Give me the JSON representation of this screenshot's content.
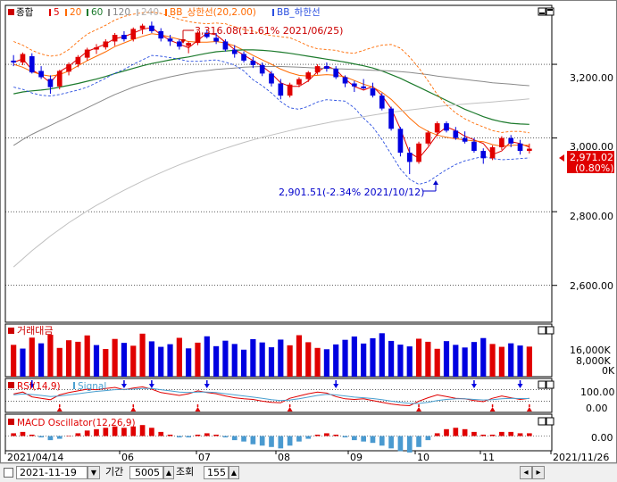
{
  "colors": {
    "up": "#e00000",
    "down": "#0000e0",
    "ma5": "#e00000",
    "ma20": "#ff6a00",
    "ma60": "#1c7a2c",
    "ma120": "#8a8a8a",
    "ma240": "#c0c0c0",
    "bb_upper": "#ff6a00",
    "bb_lower": "#2a4fe0",
    "rsi": "#e00000",
    "signal": "#4aa0d0",
    "grid": "#000000",
    "badge": "#e00000"
  },
  "legend": {
    "main_name": "종합",
    "ma5": "5",
    "ma20": "20",
    "ma60": "60",
    "ma120": "120",
    "ma240": "240",
    "bb_upper": "BB_상한선(20,2.00)",
    "bb_lower": "BB_하한선"
  },
  "annotations": {
    "high": "3,316.08(11.61% 2021/06/25)",
    "low": "2,901.51(-2.34% 2021/10/12)"
  },
  "price_badge": {
    "value": "2,971.02",
    "change": "(0.80%)"
  },
  "panels": {
    "volume_title": "거래대금",
    "rsi_title": "RSI(14,9)",
    "signal_title": "Signal",
    "macd_title": "MACD Oscillator(12,26,9)"
  },
  "bottom": {
    "date_value": "2021-11-19",
    "period_label": "기간",
    "period_value": "5005",
    "query_label": "조회",
    "count_value": "155"
  },
  "chart_data": [
    {
      "type": "candlestick",
      "title": "종합",
      "x_ticks": [
        "2021/04/14",
        "06",
        "07",
        "08",
        "09",
        "10",
        "11",
        "2021/11/26"
      ],
      "y_ticks": [
        "3,200.00",
        "3,000.00",
        "2,800.00",
        "2,600.00"
      ],
      "ylim": [
        2500,
        3360
      ],
      "series": [
        {
          "name": "5",
          "values": [
            3205,
            3215,
            3185,
            3170,
            3150,
            3180,
            3195,
            3215,
            3235,
            3245,
            3255,
            3270,
            3275,
            3285,
            3295,
            3300,
            3280,
            3265,
            3255,
            3245,
            3265,
            3285,
            3280,
            3260,
            3240,
            3225,
            3210,
            3195,
            3175,
            3150,
            3140,
            3140,
            3155,
            3180,
            3195,
            3185,
            3160,
            3140,
            3130,
            3140,
            3115,
            3080,
            3025,
            2960,
            2945,
            2975,
            3010,
            3030,
            3020,
            3005,
            2995,
            2985,
            2955,
            2965,
            2990,
            2985,
            2975
          ]
        },
        {
          "name": "20",
          "values": [
            3200,
            3192,
            3180,
            3172,
            3168,
            3172,
            3182,
            3196,
            3210,
            3222,
            3234,
            3248,
            3258,
            3268,
            3276,
            3283,
            3280,
            3274,
            3268,
            3262,
            3260,
            3260,
            3262,
            3258,
            3250,
            3238,
            3224,
            3212,
            3200,
            3187,
            3177,
            3170,
            3168,
            3170,
            3172,
            3170,
            3166,
            3156,
            3146,
            3138,
            3124,
            3105,
            3080,
            3054,
            3032,
            3018,
            3008,
            3002,
            2998,
            2995,
            2992,
            2990,
            2982,
            2978,
            2980,
            2981,
            2980
          ]
        },
        {
          "name": "60",
          "values": [
            3120,
            3125,
            3128,
            3130,
            3133,
            3138,
            3143,
            3148,
            3154,
            3160,
            3167,
            3175,
            3182,
            3189,
            3196,
            3202,
            3207,
            3212,
            3216,
            3220,
            3225,
            3230,
            3234,
            3236,
            3238,
            3239,
            3239,
            3238,
            3236,
            3233,
            3230,
            3226,
            3222,
            3218,
            3214,
            3210,
            3206,
            3201,
            3196,
            3190,
            3182,
            3172,
            3162,
            3150,
            3138,
            3126,
            3114,
            3102,
            3090,
            3078,
            3068,
            3058,
            3050,
            3044,
            3040,
            3038,
            3037
          ]
        },
        {
          "name": "120",
          "values": [
            2980,
            2996,
            3010,
            3022,
            3034,
            3046,
            3058,
            3070,
            3082,
            3094,
            3106,
            3118,
            3128,
            3138,
            3146,
            3153,
            3160,
            3166,
            3171,
            3176,
            3180,
            3183,
            3186,
            3188,
            3190,
            3192,
            3193,
            3194,
            3194,
            3194,
            3193,
            3192,
            3191,
            3190,
            3189,
            3188,
            3187,
            3186,
            3185,
            3184,
            3183,
            3182,
            3180,
            3178,
            3175,
            3172,
            3168,
            3165,
            3162,
            3159,
            3156,
            3153,
            3150,
            3148,
            3146,
            3144,
            3142
          ]
        },
        {
          "name": "240",
          "values": [
            2650,
            2672,
            2694,
            2714,
            2734,
            2752,
            2770,
            2786,
            2802,
            2817,
            2831,
            2845,
            2858,
            2871,
            2883,
            2895,
            2906,
            2917,
            2927,
            2937,
            2946,
            2955,
            2964,
            2972,
            2980,
            2988,
            2995,
            3002,
            3008,
            3014,
            3020,
            3026,
            3031,
            3036,
            3041,
            3046,
            3050,
            3054,
            3058,
            3062,
            3066,
            3070,
            3073,
            3076,
            3079,
            3082,
            3085,
            3088,
            3090,
            3092,
            3094,
            3096,
            3098,
            3100,
            3102,
            3104,
            3106
          ]
        },
        {
          "name": "BB_상한선",
          "values": [
            3262,
            3252,
            3238,
            3228,
            3222,
            3225,
            3240,
            3262,
            3282,
            3294,
            3306,
            3320,
            3330,
            3336,
            3340,
            3342,
            3338,
            3330,
            3322,
            3316,
            3312,
            3310,
            3312,
            3310,
            3302,
            3294,
            3290,
            3282,
            3278,
            3275,
            3272,
            3262,
            3250,
            3242,
            3240,
            3238,
            3232,
            3230,
            3238,
            3246,
            3252,
            3254,
            3244,
            3220,
            3190,
            3155,
            3118,
            3090,
            3068,
            3052,
            3040,
            3030,
            3020,
            3015,
            3018,
            3018,
            3014
          ]
        },
        {
          "name": "BB_하한선",
          "values": [
            3138,
            3132,
            3122,
            3116,
            3114,
            3118,
            3124,
            3130,
            3138,
            3150,
            3162,
            3176,
            3186,
            3200,
            3212,
            3224,
            3222,
            3218,
            3214,
            3208,
            3208,
            3210,
            3212,
            3206,
            3198,
            3182,
            3158,
            3142,
            3122,
            3099,
            3082,
            3078,
            3086,
            3098,
            3104,
            3102,
            3100,
            3082,
            3054,
            3030,
            2996,
            2956,
            2916,
            2888,
            2874,
            2881,
            2898,
            2914,
            2928,
            2938,
            2944,
            2950,
            2944,
            2941,
            2942,
            2944,
            2946
          ]
        }
      ],
      "candles": [
        [
          3210,
          3225,
          3195,
          3205
        ],
        [
          3205,
          3232,
          3198,
          3228
        ],
        [
          3222,
          3230,
          3175,
          3178
        ],
        [
          3182,
          3195,
          3160,
          3165
        ],
        [
          3160,
          3170,
          3120,
          3138
        ],
        [
          3140,
          3185,
          3132,
          3182
        ],
        [
          3180,
          3205,
          3170,
          3200
        ],
        [
          3200,
          3225,
          3192,
          3220
        ],
        [
          3218,
          3245,
          3210,
          3240
        ],
        [
          3240,
          3255,
          3228,
          3246
        ],
        [
          3246,
          3268,
          3240,
          3262
        ],
        [
          3262,
          3285,
          3250,
          3280
        ],
        [
          3280,
          3290,
          3262,
          3268
        ],
        [
          3268,
          3300,
          3262,
          3296
        ],
        [
          3296,
          3310,
          3282,
          3305
        ],
        [
          3305,
          3316,
          3285,
          3290
        ],
        [
          3290,
          3298,
          3262,
          3270
        ],
        [
          3270,
          3280,
          3250,
          3262
        ],
        [
          3262,
          3268,
          3240,
          3248
        ],
        [
          3250,
          3262,
          3230,
          3258
        ],
        [
          3258,
          3290,
          3252,
          3286
        ],
        [
          3286,
          3294,
          3270,
          3274
        ],
        [
          3272,
          3285,
          3255,
          3262
        ],
        [
          3262,
          3268,
          3235,
          3240
        ],
        [
          3240,
          3252,
          3218,
          3228
        ],
        [
          3228,
          3235,
          3205,
          3210
        ],
        [
          3210,
          3220,
          3190,
          3198
        ],
        [
          3198,
          3205,
          3168,
          3175
        ],
        [
          3175,
          3182,
          3140,
          3148
        ],
        [
          3148,
          3160,
          3105,
          3115
        ],
        [
          3115,
          3150,
          3110,
          3145
        ],
        [
          3145,
          3165,
          3138,
          3160
        ],
        [
          3160,
          3182,
          3152,
          3178
        ],
        [
          3178,
          3200,
          3172,
          3195
        ],
        [
          3195,
          3205,
          3180,
          3188
        ],
        [
          3188,
          3195,
          3160,
          3165
        ],
        [
          3165,
          3170,
          3138,
          3148
        ],
        [
          3148,
          3155,
          3125,
          3140
        ],
        [
          3140,
          3160,
          3132,
          3135
        ],
        [
          3135,
          3150,
          3110,
          3115
        ],
        [
          3115,
          3122,
          3075,
          3080
        ],
        [
          3080,
          3085,
          3020,
          3025
        ],
        [
          3025,
          3030,
          2950,
          2960
        ],
        [
          2960,
          2975,
          2902,
          2935
        ],
        [
          2935,
          2990,
          2930,
          2985
        ],
        [
          2985,
          3020,
          2980,
          3015
        ],
        [
          3015,
          3045,
          3005,
          3040
        ],
        [
          3040,
          3045,
          3015,
          3020
        ],
        [
          3020,
          3030,
          2995,
          3000
        ],
        [
          3000,
          3018,
          2985,
          2990
        ],
        [
          2990,
          3000,
          2960,
          2965
        ],
        [
          2965,
          2972,
          2930,
          2945
        ],
        [
          2945,
          2980,
          2940,
          2975
        ],
        [
          2975,
          3005,
          2968,
          3000
        ],
        [
          3000,
          3008,
          2975,
          2985
        ],
        [
          2985,
          2995,
          2955,
          2965
        ],
        [
          2965,
          2985,
          2958,
          2971
        ]
      ]
    },
    {
      "type": "bar",
      "title": "거래대금",
      "y_ticks": [
        "16,000K",
        "8,000K",
        "0K"
      ],
      "ylim": [
        0,
        24000
      ],
      "values": [
        14500,
        12800,
        17800,
        15200,
        19100,
        13100,
        16600,
        15900,
        18800,
        14400,
        12600,
        17200,
        15400,
        14100,
        19600,
        16100,
        13600,
        14800,
        17700,
        12900,
        15500,
        18400,
        13900,
        16400,
        14900,
        12300,
        17100,
        15600,
        13400,
        16900,
        14300,
        18900,
        15700,
        13100,
        12500,
        14700,
        16800,
        18300,
        15100,
        17500,
        19800,
        16300,
        14600,
        13800,
        17300,
        15900,
        12700,
        16200,
        14500,
        13300,
        15800,
        17600,
        14900,
        13600,
        15200,
        14200,
        13700
      ],
      "up": [
        true,
        false,
        true,
        false,
        true,
        true,
        true,
        true,
        true,
        false,
        true,
        true,
        false,
        true,
        true,
        false,
        false,
        false,
        true,
        false,
        true,
        false,
        false,
        false,
        false,
        false,
        false,
        false,
        false,
        false,
        true,
        true,
        true,
        true,
        false,
        false,
        false,
        false,
        false,
        false,
        false,
        false,
        false,
        false,
        true,
        true,
        true,
        false,
        false,
        false,
        false,
        false,
        true,
        true,
        false,
        false,
        true
      ]
    },
    {
      "type": "line",
      "title": "RSI(14,9)",
      "y_ticks": [
        "100.00",
        "0.00"
      ],
      "ylim": [
        0,
        100
      ],
      "series": [
        {
          "name": "RSI(14,9)",
          "values": [
            55,
            62,
            45,
            40,
            35,
            52,
            60,
            66,
            72,
            70,
            74,
            78,
            70,
            76,
            80,
            72,
            60,
            55,
            50,
            56,
            66,
            60,
            56,
            48,
            42,
            38,
            36,
            30,
            26,
            24,
            40,
            48,
            56,
            62,
            58,
            46,
            38,
            36,
            38,
            32,
            26,
            20,
            16,
            14,
            30,
            42,
            52,
            46,
            40,
            38,
            32,
            28,
            40,
            48,
            42,
            36,
            40
          ]
        },
        {
          "name": "Signal",
          "values": [
            52,
            55,
            53,
            50,
            46,
            48,
            52,
            56,
            60,
            64,
            67,
            70,
            71,
            72,
            74,
            74,
            70,
            66,
            62,
            60,
            62,
            62,
            60,
            56,
            52,
            48,
            44,
            40,
            35,
            32,
            34,
            38,
            44,
            50,
            54,
            52,
            48,
            44,
            42,
            39,
            35,
            30,
            26,
            22,
            22,
            26,
            32,
            36,
            38,
            38,
            36,
            34,
            35,
            38,
            40,
            39,
            39
          ]
        }
      ]
    },
    {
      "type": "bar",
      "title": "MACD Oscillator(12,26,9)",
      "y_ticks": [
        "0.00"
      ],
      "ylim": [
        -12,
        12
      ],
      "values": [
        2,
        3,
        1,
        -1,
        -3,
        -2,
        0,
        2,
        4,
        5,
        6,
        7,
        6,
        7,
        8,
        6,
        3,
        1,
        -1,
        -1,
        1,
        2,
        1,
        -1,
        -3,
        -4,
        -6,
        -7,
        -8,
        -9,
        -7,
        -4,
        -2,
        1,
        2,
        1,
        -1,
        -3,
        -4,
        -5,
        -7,
        -9,
        -11,
        -12,
        -8,
        -3,
        2,
        5,
        6,
        5,
        3,
        1,
        1,
        3,
        3,
        2,
        2
      ]
    }
  ]
}
